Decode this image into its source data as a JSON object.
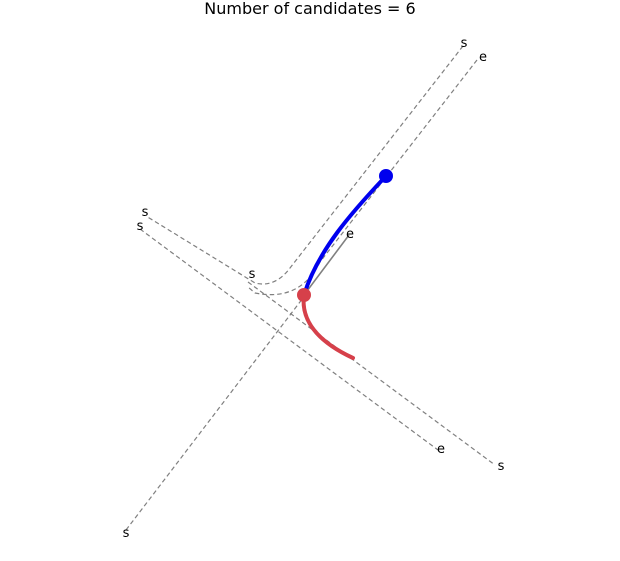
{
  "title": "Number of candidates = 6",
  "colors": {
    "lane": "#808080",
    "history": "#0000ee",
    "prediction": "#d6404a",
    "background": "#ffffff"
  },
  "end_label_start": "s",
  "end_label_end": "e",
  "lanes": [
    {
      "name": "ne-lane",
      "start_label": "s",
      "end_label": "e"
    },
    {
      "name": "diagonal-lane",
      "start_label": "s",
      "end_label": "e"
    },
    {
      "name": "outer-lane",
      "start_label": "s",
      "end_label": "e"
    },
    {
      "name": "sw-lane",
      "start_label": "s",
      "end_label": ""
    },
    {
      "name": "ne-outer-lane",
      "start_label": "s",
      "end_label": ""
    }
  ]
}
